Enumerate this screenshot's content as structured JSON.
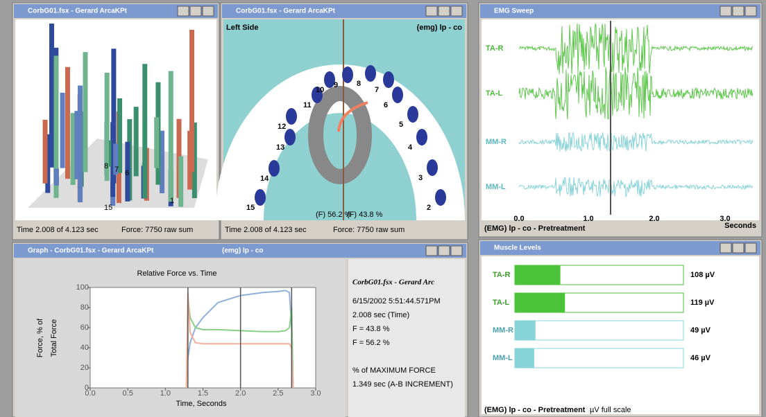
{
  "windows": {
    "scan3d": {
      "title": "CorbG01.fsx - Gerard ArcaKPt",
      "labels": [
        "8",
        "7",
        "6",
        "15",
        "1"
      ],
      "status_time": "Time 2.008 of 4.123 sec",
      "status_force": "Force: 7750 raw sum"
    },
    "arch": {
      "title": "CorbG01.fsx - Gerard ArcaKPt",
      "left_label": "Left Side",
      "right_label": "(emg) lp - co",
      "teeth": [
        "15",
        "14",
        "13",
        "12",
        "11",
        "10",
        "9",
        "8",
        "7",
        "6",
        "5",
        "4",
        "3",
        "2"
      ],
      "left_force": "(F) 56.2 %",
      "right_force": "(F) 43.8 %",
      "status_time": "Time 2.008 of 4.123 sec",
      "status_force": "Force: 7750 raw sum"
    },
    "emg": {
      "title": "EMG Sweep",
      "channels": [
        "TA-R",
        "TA-L",
        "MM-R",
        "MM-L"
      ],
      "ticks": [
        "0.0",
        "1.0",
        "2.0",
        "3.0"
      ],
      "unit": "Seconds",
      "footer": "(EMG) lp - co - Pretreatment"
    },
    "graph": {
      "title": "Graph - CorbG01.fsx - Gerard ArcaKPt",
      "subtitle": "(emg) lp - co",
      "side_title": "CorbG01.fsx - Gerard Arc",
      "side_lines": [
        "6/15/2002 5:51:44.571PM",
        "2.008 sec (Time)",
        "F = 43.8 %",
        "F = 56.2 %",
        "% of MAXIMUM FORCE",
        "1.349 sec (A-B INCREMENT)"
      ]
    },
    "muscle": {
      "title": "Muscle Levels",
      "footer": "(EMG) lp - co - Pretreatment",
      "footer_note": "µV full scale"
    }
  },
  "chart_data": [
    {
      "type": "line",
      "title": "Relative Force vs. Time",
      "x_label": "Time, Seconds",
      "y_label": [
        "Force, % of",
        "Total Force"
      ],
      "x": [
        1.28,
        1.3,
        1.33,
        1.4,
        1.5,
        1.7,
        2.0,
        2.3,
        2.5,
        2.6,
        2.65,
        2.68,
        2.7
      ],
      "series": [
        {
          "color": "#8fb0dd",
          "values": [
            0,
            30,
            45,
            60,
            70,
            85,
            92,
            95,
            96,
            97,
            95,
            60,
            0
          ]
        },
        {
          "color": "#86d086",
          "values": [
            0,
            90,
            70,
            60,
            58,
            58,
            57,
            56,
            56,
            57,
            60,
            80,
            0
          ]
        },
        {
          "color": "#f4b09a",
          "values": [
            0,
            95,
            55,
            45,
            44,
            44,
            44,
            44,
            44,
            44,
            44,
            40,
            0
          ]
        }
      ],
      "cursors": [
        1.3,
        2.0,
        2.68
      ],
      "xlim": [
        0,
        3
      ],
      "xticks": [
        {
          "value": 0,
          "label": "0.0"
        },
        0.5,
        {
          "value": 1,
          "label": "1.0"
        },
        1.5,
        {
          "value": 2,
          "label": "2.0"
        },
        2.5,
        {
          "value": 3,
          "label": "3.0"
        }
      ],
      "ylim": [
        0,
        100
      ],
      "yticks": [
        0,
        20,
        40,
        60,
        80,
        100
      ]
    },
    {
      "type": "hbar",
      "categories": [
        "TA-R",
        "TA-L",
        "MM-R",
        "MM-L"
      ],
      "values": [
        108,
        119,
        49,
        46
      ],
      "value_labels": [
        "108 µV",
        "119 µV",
        "49 µV",
        "46 µV"
      ],
      "colors": [
        "#4cc23a",
        "#4cc23a",
        "#86d3d8",
        "#86d3d8"
      ],
      "xlim": [
        0,
        400
      ]
    }
  ]
}
